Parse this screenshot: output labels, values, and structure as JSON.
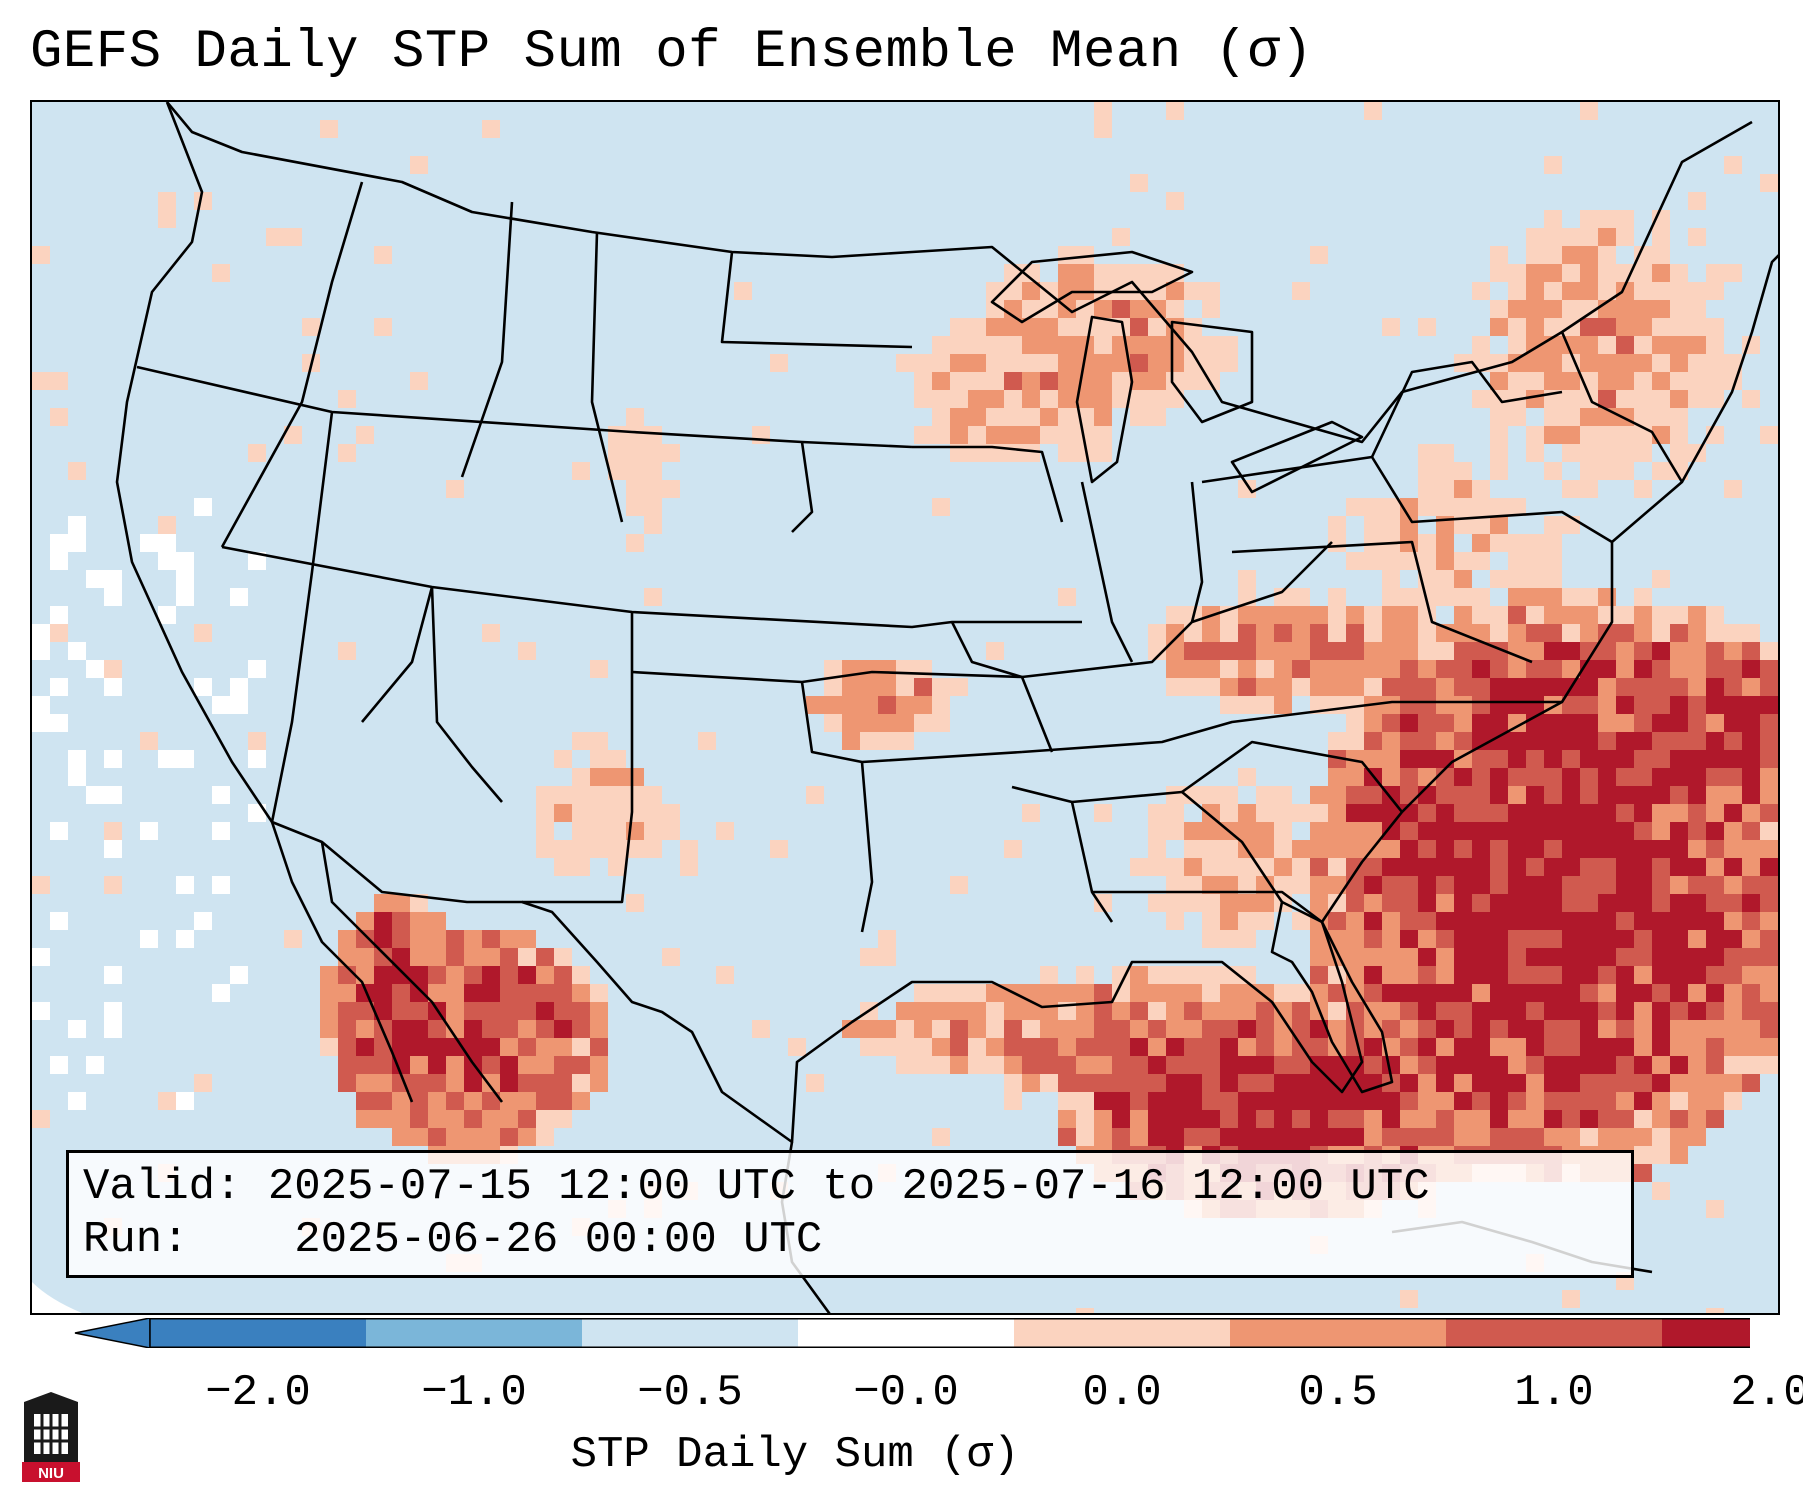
{
  "title": "GEFS Daily STP Sum of Ensemble Mean (σ)",
  "info": {
    "valid_label": "Valid:",
    "valid_text": "2025-07-15 12:00 UTC to 2025-07-16 12:00 UTC",
    "run_label": "Run:",
    "run_text": "2025-06-26 00:00 UTC"
  },
  "colorbar": {
    "label": "STP Daily Sum (σ)",
    "ticks": [
      "−2.0",
      "−1.0",
      "−0.5",
      "−0.0",
      "0.0",
      "0.5",
      "1.0",
      "2.0"
    ],
    "colors": [
      "#3a80bf",
      "#7bb6d9",
      "#cfe4f1",
      "#ffffff",
      "#fbd3bf",
      "#ee9672",
      "#d05a4f",
      "#b0182b"
    ]
  },
  "map": {
    "region": "Continental United States",
    "background_color": "#cfe4f1",
    "hotspots": [
      {
        "region": "Gulf of Mexico",
        "level": "high"
      },
      {
        "region": "Western Atlantic off Southeast coast",
        "level": "high"
      },
      {
        "region": "Northern Mexico",
        "level": "high"
      },
      {
        "region": "Upper Midwest",
        "level": "moderate"
      },
      {
        "region": "Ohio Valley",
        "level": "moderate"
      },
      {
        "region": "Northeast",
        "level": "moderate"
      }
    ]
  },
  "logo": {
    "text": "NIU"
  }
}
